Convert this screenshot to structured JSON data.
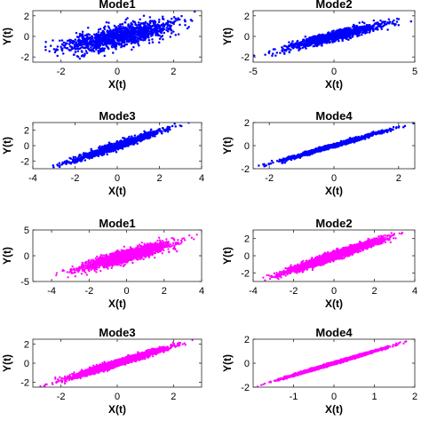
{
  "chart_data": [
    {
      "type": "scatter",
      "title": "Mode1",
      "xlabel": "X(t)",
      "ylabel": "Y(t)",
      "color": "#0000ff",
      "xlim": [
        -3,
        3
      ],
      "ylim": [
        -2.5,
        2.5
      ],
      "xticks": [
        -2,
        0,
        2
      ],
      "yticks": [
        -2,
        0,
        2
      ],
      "x_spread": 0.95,
      "slope": 0.55,
      "noise": 0.5,
      "n_points": 1300,
      "seed": 11
    },
    {
      "type": "scatter",
      "title": "Mode2",
      "xlabel": "X(t)",
      "ylabel": "Y(t)",
      "color": "#0000ff",
      "xlim": [
        -5,
        5
      ],
      "ylim": [
        -2.5,
        2.5
      ],
      "xticks": [
        -5,
        0,
        5
      ],
      "yticks": [
        -2,
        0,
        2
      ],
      "x_spread": 1.4,
      "slope": 0.38,
      "noise": 0.22,
      "n_points": 1300,
      "seed": 23
    },
    {
      "type": "scatter",
      "title": "Mode3",
      "xlabel": "X(t)",
      "ylabel": "Y(t)",
      "color": "#0000ff",
      "xlim": [
        -4,
        4
      ],
      "ylim": [
        -3,
        3
      ],
      "xticks": [
        -4,
        -2,
        0,
        2,
        4
      ],
      "yticks": [
        -2,
        0,
        2
      ],
      "x_spread": 1.05,
      "slope": 0.92,
      "noise": 0.22,
      "n_points": 1300,
      "seed": 37
    },
    {
      "type": "scatter",
      "title": "Mode4",
      "xlabel": "X(t)",
      "ylabel": "Y(t)",
      "color": "#0000ff",
      "xlim": [
        -2.5,
        2.5
      ],
      "ylim": [
        -2,
        2
      ],
      "xticks": [
        -2,
        0,
        2
      ],
      "yticks": [
        -2,
        0,
        2
      ],
      "x_spread": 0.75,
      "slope": 0.8,
      "noise": 0.08,
      "n_points": 1300,
      "seed": 41
    },
    {
      "type": "scatter",
      "title": "Mode1",
      "xlabel": "X(t)",
      "ylabel": "Y(t)",
      "color": "#ff00ff",
      "xlim": [
        -5,
        4
      ],
      "ylim": [
        -5,
        5
      ],
      "xticks": [
        -4,
        -2,
        0,
        2,
        4
      ],
      "yticks": [
        -5,
        0,
        5
      ],
      "x_spread": 1.1,
      "slope": 0.95,
      "noise": 0.55,
      "n_points": 2200,
      "seed": 53
    },
    {
      "type": "scatter",
      "title": "Mode2",
      "xlabel": "X(t)",
      "ylabel": "Y(t)",
      "color": "#ff00ff",
      "xlim": [
        -4,
        4
      ],
      "ylim": [
        -3,
        3
      ],
      "xticks": [
        -4,
        -2,
        0,
        2,
        4
      ],
      "yticks": [
        -2,
        0,
        2
      ],
      "x_spread": 1.1,
      "slope": 0.8,
      "noise": 0.22,
      "n_points": 3500,
      "seed": 67
    },
    {
      "type": "scatter",
      "title": "Mode3",
      "xlabel": "X(t)",
      "ylabel": "Y(t)",
      "color": "#ff00ff",
      "xlim": [
        -3,
        3
      ],
      "ylim": [
        -2.5,
        2.5
      ],
      "xticks": [
        -2,
        0,
        2
      ],
      "yticks": [
        -2,
        0,
        2
      ],
      "x_spread": 0.8,
      "slope": 0.9,
      "noise": 0.15,
      "n_points": 3500,
      "seed": 79
    },
    {
      "type": "scatter",
      "title": "Mode4",
      "xlabel": "X(t)",
      "ylabel": "Y(t)",
      "color": "#ff00ff",
      "xlim": [
        -2,
        2
      ],
      "ylim": [
        -2,
        2
      ],
      "xticks": [
        -1,
        0,
        1,
        2
      ],
      "yticks": [
        -2,
        0,
        2
      ],
      "x_spread": 0.55,
      "slope": 1.0,
      "noise": 0.05,
      "n_points": 3500,
      "seed": 97
    }
  ]
}
